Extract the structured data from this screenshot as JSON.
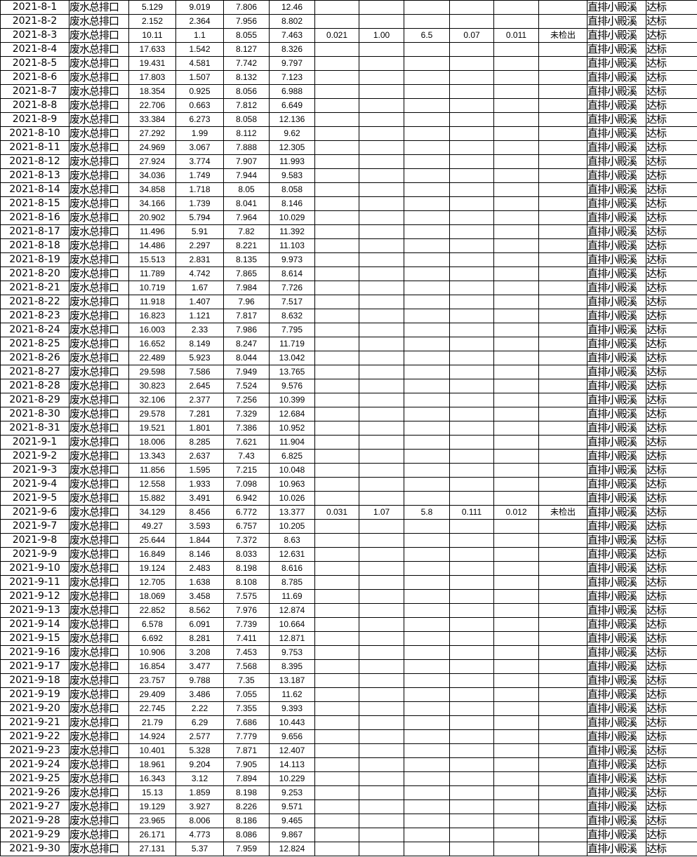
{
  "table": {
    "rows": [
      [
        "2021-8-1",
        "废水总排口",
        "5.129",
        "9.019",
        "7.806",
        "12.46",
        "",
        "",
        "",
        "",
        "",
        "",
        "直排小殿溪",
        "达标"
      ],
      [
        "2021-8-2",
        "废水总排口",
        "2.152",
        "2.364",
        "7.956",
        "8.802",
        "",
        "",
        "",
        "",
        "",
        "",
        "直排小殿溪",
        "达标"
      ],
      [
        "2021-8-3",
        "废水总排口",
        "10.11",
        "1.1",
        "8.055",
        "7.463",
        "0.021",
        "1.00",
        "6.5",
        "0.07",
        "0.011",
        "未检出",
        "直排小殿溪",
        "达标"
      ],
      [
        "2021-8-4",
        "废水总排口",
        "17.633",
        "1.542",
        "8.127",
        "8.326",
        "",
        "",
        "",
        "",
        "",
        "",
        "直排小殿溪",
        "达标"
      ],
      [
        "2021-8-5",
        "废水总排口",
        "19.431",
        "4.581",
        "7.742",
        "9.797",
        "",
        "",
        "",
        "",
        "",
        "",
        "直排小殿溪",
        "达标"
      ],
      [
        "2021-8-6",
        "废水总排口",
        "17.803",
        "1.507",
        "8.132",
        "7.123",
        "",
        "",
        "",
        "",
        "",
        "",
        "直排小殿溪",
        "达标"
      ],
      [
        "2021-8-7",
        "废水总排口",
        "18.354",
        "0.925",
        "8.056",
        "6.988",
        "",
        "",
        "",
        "",
        "",
        "",
        "直排小殿溪",
        "达标"
      ],
      [
        "2021-8-8",
        "废水总排口",
        "22.706",
        "0.663",
        "7.812",
        "6.649",
        "",
        "",
        "",
        "",
        "",
        "",
        "直排小殿溪",
        "达标"
      ],
      [
        "2021-8-9",
        "废水总排口",
        "33.384",
        "6.273",
        "8.058",
        "12.136",
        "",
        "",
        "",
        "",
        "",
        "",
        "直排小殿溪",
        "达标"
      ],
      [
        "2021-8-10",
        "废水总排口",
        "27.292",
        "1.99",
        "8.112",
        "9.62",
        "",
        "",
        "",
        "",
        "",
        "",
        "直排小殿溪",
        "达标"
      ],
      [
        "2021-8-11",
        "废水总排口",
        "24.969",
        "3.067",
        "7.888",
        "12.305",
        "",
        "",
        "",
        "",
        "",
        "",
        "直排小殿溪",
        "达标"
      ],
      [
        "2021-8-12",
        "废水总排口",
        "27.924",
        "3.774",
        "7.907",
        "11.993",
        "",
        "",
        "",
        "",
        "",
        "",
        "直排小殿溪",
        "达标"
      ],
      [
        "2021-8-13",
        "废水总排口",
        "34.036",
        "1.749",
        "7.944",
        "9.583",
        "",
        "",
        "",
        "",
        "",
        "",
        "直排小殿溪",
        "达标"
      ],
      [
        "2021-8-14",
        "废水总排口",
        "34.858",
        "1.718",
        "8.05",
        "8.058",
        "",
        "",
        "",
        "",
        "",
        "",
        "直排小殿溪",
        "达标"
      ],
      [
        "2021-8-15",
        "废水总排口",
        "34.166",
        "1.739",
        "8.041",
        "8.146",
        "",
        "",
        "",
        "",
        "",
        "",
        "直排小殿溪",
        "达标"
      ],
      [
        "2021-8-16",
        "废水总排口",
        "20.902",
        "5.794",
        "7.964",
        "10.029",
        "",
        "",
        "",
        "",
        "",
        "",
        "直排小殿溪",
        "达标"
      ],
      [
        "2021-8-17",
        "废水总排口",
        "11.496",
        "5.91",
        "7.82",
        "11.392",
        "",
        "",
        "",
        "",
        "",
        "",
        "直排小殿溪",
        "达标"
      ],
      [
        "2021-8-18",
        "废水总排口",
        "14.486",
        "2.297",
        "8.221",
        "11.103",
        "",
        "",
        "",
        "",
        "",
        "",
        "直排小殿溪",
        "达标"
      ],
      [
        "2021-8-19",
        "废水总排口",
        "15.513",
        "2.831",
        "8.135",
        "9.973",
        "",
        "",
        "",
        "",
        "",
        "",
        "直排小殿溪",
        "达标"
      ],
      [
        "2021-8-20",
        "废水总排口",
        "11.789",
        "4.742",
        "7.865",
        "8.614",
        "",
        "",
        "",
        "",
        "",
        "",
        "直排小殿溪",
        "达标"
      ],
      [
        "2021-8-21",
        "废水总排口",
        "10.719",
        "1.67",
        "7.984",
        "7.726",
        "",
        "",
        "",
        "",
        "",
        "",
        "直排小殿溪",
        "达标"
      ],
      [
        "2021-8-22",
        "废水总排口",
        "11.918",
        "1.407",
        "7.96",
        "7.517",
        "",
        "",
        "",
        "",
        "",
        "",
        "直排小殿溪",
        "达标"
      ],
      [
        "2021-8-23",
        "废水总排口",
        "16.823",
        "1.121",
        "7.817",
        "8.632",
        "",
        "",
        "",
        "",
        "",
        "",
        "直排小殿溪",
        "达标"
      ],
      [
        "2021-8-24",
        "废水总排口",
        "16.003",
        "2.33",
        "7.986",
        "7.795",
        "",
        "",
        "",
        "",
        "",
        "",
        "直排小殿溪",
        "达标"
      ],
      [
        "2021-8-25",
        "废水总排口",
        "16.652",
        "8.149",
        "8.247",
        "11.719",
        "",
        "",
        "",
        "",
        "",
        "",
        "直排小殿溪",
        "达标"
      ],
      [
        "2021-8-26",
        "废水总排口",
        "22.489",
        "5.923",
        "8.044",
        "13.042",
        "",
        "",
        "",
        "",
        "",
        "",
        "直排小殿溪",
        "达标"
      ],
      [
        "2021-8-27",
        "废水总排口",
        "29.598",
        "7.586",
        "7.949",
        "13.765",
        "",
        "",
        "",
        "",
        "",
        "",
        "直排小殿溪",
        "达标"
      ],
      [
        "2021-8-28",
        "废水总排口",
        "30.823",
        "2.645",
        "7.524",
        "9.576",
        "",
        "",
        "",
        "",
        "",
        "",
        "直排小殿溪",
        "达标"
      ],
      [
        "2021-8-29",
        "废水总排口",
        "32.106",
        "2.377",
        "7.256",
        "10.399",
        "",
        "",
        "",
        "",
        "",
        "",
        "直排小殿溪",
        "达标"
      ],
      [
        "2021-8-30",
        "废水总排口",
        "29.578",
        "7.281",
        "7.329",
        "12.684",
        "",
        "",
        "",
        "",
        "",
        "",
        "直排小殿溪",
        "达标"
      ],
      [
        "2021-8-31",
        "废水总排口",
        "19.521",
        "1.801",
        "7.386",
        "10.952",
        "",
        "",
        "",
        "",
        "",
        "",
        "直排小殿溪",
        "达标"
      ],
      [
        "2021-9-1",
        "废水总排口",
        "18.006",
        "8.285",
        "7.621",
        "11.904",
        "",
        "",
        "",
        "",
        "",
        "",
        "直排小殿溪",
        "达标"
      ],
      [
        "2021-9-2",
        "废水总排口",
        "13.343",
        "2.637",
        "7.43",
        "6.825",
        "",
        "",
        "",
        "",
        "",
        "",
        "直排小殿溪",
        "达标"
      ],
      [
        "2021-9-3",
        "废水总排口",
        "11.856",
        "1.595",
        "7.215",
        "10.048",
        "",
        "",
        "",
        "",
        "",
        "",
        "直排小殿溪",
        "达标"
      ],
      [
        "2021-9-4",
        "废水总排口",
        "12.558",
        "1.933",
        "7.098",
        "10.963",
        "",
        "",
        "",
        "",
        "",
        "",
        "直排小殿溪",
        "达标"
      ],
      [
        "2021-9-5",
        "废水总排口",
        "15.882",
        "3.491",
        "6.942",
        "10.026",
        "",
        "",
        "",
        "",
        "",
        "",
        "直排小殿溪",
        "达标"
      ],
      [
        "2021-9-6",
        "废水总排口",
        "34.129",
        "8.456",
        "6.772",
        "13.377",
        "0.031",
        "1.07",
        "5.8",
        "0.111",
        "0.012",
        "未检出",
        "直排小殿溪",
        "达标"
      ],
      [
        "2021-9-7",
        "废水总排口",
        "49.27",
        "3.593",
        "6.757",
        "10.205",
        "",
        "",
        "",
        "",
        "",
        "",
        "直排小殿溪",
        "达标"
      ],
      [
        "2021-9-8",
        "废水总排口",
        "25.644",
        "1.844",
        "7.372",
        "8.63",
        "",
        "",
        "",
        "",
        "",
        "",
        "直排小殿溪",
        "达标"
      ],
      [
        "2021-9-9",
        "废水总排口",
        "16.849",
        "8.146",
        "8.033",
        "12.631",
        "",
        "",
        "",
        "",
        "",
        "",
        "直排小殿溪",
        "达标"
      ],
      [
        "2021-9-10",
        "废水总排口",
        "19.124",
        "2.483",
        "8.198",
        "8.616",
        "",
        "",
        "",
        "",
        "",
        "",
        "直排小殿溪",
        "达标"
      ],
      [
        "2021-9-11",
        "废水总排口",
        "12.705",
        "1.638",
        "8.108",
        "8.785",
        "",
        "",
        "",
        "",
        "",
        "",
        "直排小殿溪",
        "达标"
      ],
      [
        "2021-9-12",
        "废水总排口",
        "18.069",
        "3.458",
        "7.575",
        "11.69",
        "",
        "",
        "",
        "",
        "",
        "",
        "直排小殿溪",
        "达标"
      ],
      [
        "2021-9-13",
        "废水总排口",
        "22.852",
        "8.562",
        "7.976",
        "12.874",
        "",
        "",
        "",
        "",
        "",
        "",
        "直排小殿溪",
        "达标"
      ],
      [
        "2021-9-14",
        "废水总排口",
        "6.578",
        "6.091",
        "7.739",
        "10.664",
        "",
        "",
        "",
        "",
        "",
        "",
        "直排小殿溪",
        "达标"
      ],
      [
        "2021-9-15",
        "废水总排口",
        "6.692",
        "8.281",
        "7.411",
        "12.871",
        "",
        "",
        "",
        "",
        "",
        "",
        "直排小殿溪",
        "达标"
      ],
      [
        "2021-9-16",
        "废水总排口",
        "10.906",
        "3.208",
        "7.453",
        "9.753",
        "",
        "",
        "",
        "",
        "",
        "",
        "直排小殿溪",
        "达标"
      ],
      [
        "2021-9-17",
        "废水总排口",
        "16.854",
        "3.477",
        "7.568",
        "8.395",
        "",
        "",
        "",
        "",
        "",
        "",
        "直排小殿溪",
        "达标"
      ],
      [
        "2021-9-18",
        "废水总排口",
        "23.757",
        "9.788",
        "7.35",
        "13.187",
        "",
        "",
        "",
        "",
        "",
        "",
        "直排小殿溪",
        "达标"
      ],
      [
        "2021-9-19",
        "废水总排口",
        "29.409",
        "3.486",
        "7.055",
        "11.62",
        "",
        "",
        "",
        "",
        "",
        "",
        "直排小殿溪",
        "达标"
      ],
      [
        "2021-9-20",
        "废水总排口",
        "22.745",
        "2.22",
        "7.355",
        "9.393",
        "",
        "",
        "",
        "",
        "",
        "",
        "直排小殿溪",
        "达标"
      ],
      [
        "2021-9-21",
        "废水总排口",
        "21.79",
        "6.29",
        "7.686",
        "10.443",
        "",
        "",
        "",
        "",
        "",
        "",
        "直排小殿溪",
        "达标"
      ],
      [
        "2021-9-22",
        "废水总排口",
        "14.924",
        "2.577",
        "7.779",
        "9.656",
        "",
        "",
        "",
        "",
        "",
        "",
        "直排小殿溪",
        "达标"
      ],
      [
        "2021-9-23",
        "废水总排口",
        "10.401",
        "5.328",
        "7.871",
        "12.407",
        "",
        "",
        "",
        "",
        "",
        "",
        "直排小殿溪",
        "达标"
      ],
      [
        "2021-9-24",
        "废水总排口",
        "18.961",
        "9.204",
        "7.905",
        "14.113",
        "",
        "",
        "",
        "",
        "",
        "",
        "直排小殿溪",
        "达标"
      ],
      [
        "2021-9-25",
        "废水总排口",
        "16.343",
        "3.12",
        "7.894",
        "10.229",
        "",
        "",
        "",
        "",
        "",
        "",
        "直排小殿溪",
        "达标"
      ],
      [
        "2021-9-26",
        "废水总排口",
        "15.13",
        "1.859",
        "8.198",
        "9.253",
        "",
        "",
        "",
        "",
        "",
        "",
        "直排小殿溪",
        "达标"
      ],
      [
        "2021-9-27",
        "废水总排口",
        "19.129",
        "3.927",
        "8.226",
        "9.571",
        "",
        "",
        "",
        "",
        "",
        "",
        "直排小殿溪",
        "达标"
      ],
      [
        "2021-9-28",
        "废水总排口",
        "23.965",
        "8.006",
        "8.186",
        "9.465",
        "",
        "",
        "",
        "",
        "",
        "",
        "直排小殿溪",
        "达标"
      ],
      [
        "2021-9-29",
        "废水总排口",
        "26.171",
        "4.773",
        "8.086",
        "9.867",
        "",
        "",
        "",
        "",
        "",
        "",
        "直排小殿溪",
        "达标"
      ],
      [
        "2021-9-30",
        "废水总排口",
        "27.131",
        "5.37",
        "7.959",
        "12.824",
        "",
        "",
        "",
        "",
        "",
        "",
        "直排小殿溪",
        "达标"
      ]
    ]
  }
}
